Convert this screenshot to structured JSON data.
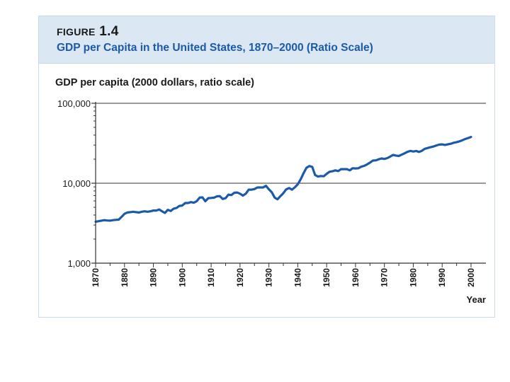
{
  "figure": {
    "label_prefix": "FIGURE",
    "label_number": "1.4",
    "title": "GDP per Capita in the United States, 1870–2000 (Ratio Scale)"
  },
  "chart_data": {
    "type": "line",
    "title": "GDP per Capita in the United States, 1870–2000 (Ratio Scale)",
    "ylabel": "GDP per capita (2000 dollars, ratio scale)",
    "xlabel": "Year",
    "yscale": "log",
    "ylim": [
      1000,
      100000
    ],
    "xlim": [
      1870,
      2000
    ],
    "y_ticks": [
      1000,
      10000,
      100000
    ],
    "y_tick_labels": [
      "1,000",
      "10,000",
      "100,000"
    ],
    "x_ticks": [
      1870,
      1880,
      1890,
      1900,
      1910,
      1920,
      1930,
      1940,
      1950,
      1960,
      1970,
      1980,
      1990,
      2000
    ],
    "x_tick_labels": [
      "1870",
      "1880",
      "1890",
      "1900",
      "1910",
      "1920",
      "1930",
      "1940",
      "1950",
      "1960",
      "1970",
      "1980",
      "1990",
      "2000"
    ],
    "gridlines_y": [
      10000,
      100000
    ],
    "line_color": "#1b5aa8",
    "series": [
      {
        "name": "GDP per capita",
        "x": [
          1870,
          1871,
          1872,
          1873,
          1874,
          1875,
          1876,
          1877,
          1878,
          1879,
          1880,
          1881,
          1882,
          1883,
          1884,
          1885,
          1886,
          1887,
          1888,
          1889,
          1890,
          1891,
          1892,
          1893,
          1894,
          1895,
          1896,
          1897,
          1898,
          1899,
          1900,
          1901,
          1902,
          1903,
          1904,
          1905,
          1906,
          1907,
          1908,
          1909,
          1910,
          1911,
          1912,
          1913,
          1914,
          1915,
          1916,
          1917,
          1918,
          1919,
          1920,
          1921,
          1922,
          1923,
          1924,
          1925,
          1926,
          1927,
          1928,
          1929,
          1930,
          1931,
          1932,
          1933,
          1934,
          1935,
          1936,
          1937,
          1938,
          1939,
          1940,
          1941,
          1942,
          1943,
          1944,
          1945,
          1946,
          1947,
          1948,
          1949,
          1950,
          1951,
          1952,
          1953,
          1954,
          1955,
          1956,
          1957,
          1958,
          1959,
          1960,
          1961,
          1962,
          1963,
          1964,
          1965,
          1966,
          1967,
          1968,
          1969,
          1970,
          1971,
          1972,
          1973,
          1974,
          1975,
          1976,
          1977,
          1978,
          1979,
          1980,
          1981,
          1982,
          1983,
          1984,
          1985,
          1986,
          1987,
          1988,
          1989,
          1990,
          1991,
          1992,
          1993,
          1994,
          1995,
          1996,
          1997,
          1998,
          1999,
          2000
        ],
        "values": [
          3300,
          3350,
          3400,
          3450,
          3420,
          3400,
          3450,
          3480,
          3500,
          3800,
          4150,
          4300,
          4350,
          4400,
          4350,
          4300,
          4400,
          4450,
          4400,
          4450,
          4550,
          4550,
          4700,
          4450,
          4250,
          4650,
          4500,
          4800,
          4900,
          5200,
          5250,
          5650,
          5650,
          5800,
          5700,
          5950,
          6600,
          6650,
          5950,
          6500,
          6550,
          6600,
          6850,
          6900,
          6350,
          6500,
          7200,
          7100,
          7600,
          7650,
          7400,
          7000,
          7400,
          8300,
          8300,
          8450,
          8850,
          8850,
          8850,
          9300,
          8400,
          7700,
          6600,
          6300,
          6900,
          7500,
          8400,
          8700,
          8300,
          8900,
          9700,
          11200,
          13300,
          15600,
          16400,
          16000,
          12700,
          12100,
          12300,
          12200,
          13100,
          13900,
          14100,
          14500,
          14200,
          15000,
          15000,
          15000,
          14500,
          15400,
          15300,
          15400,
          16100,
          16500,
          17200,
          18100,
          19200,
          19300,
          19900,
          20400,
          20100,
          20600,
          21500,
          22600,
          22200,
          21900,
          22800,
          23700,
          24700,
          25400,
          24900,
          25300,
          24600,
          25500,
          27000,
          27600,
          28200,
          28800,
          29700,
          30400,
          30600,
          30100,
          30700,
          31200,
          32100,
          32700,
          33400,
          34500,
          35700,
          36800,
          37900
        ]
      }
    ]
  }
}
